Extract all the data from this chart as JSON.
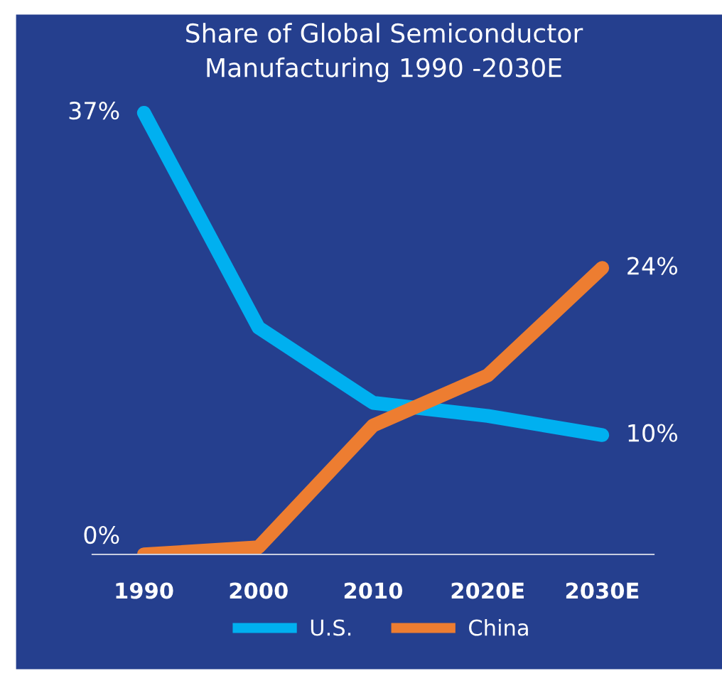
{
  "chart_data": {
    "type": "line",
    "title": "Share of Global Semiconductor\nManufacturing 1990 -2030E",
    "categories": [
      "1990",
      "2000",
      "2010",
      "2020E",
      "2030E"
    ],
    "series": [
      {
        "name": "U.S.",
        "color": "#00b0f0",
        "values": [
          37,
          19,
          12.7,
          11.6,
          10
        ],
        "value_labels": [
          "37%",
          null,
          null,
          null,
          "10%"
        ]
      },
      {
        "name": "China",
        "color": "#ed7d31",
        "values": [
          0,
          0.6,
          10.8,
          15,
          24
        ],
        "value_labels": [
          "0%",
          null,
          null,
          null,
          "24%"
        ]
      }
    ],
    "tick_labels": "x",
    "grid": false,
    "legend": "bottom",
    "marker": "none",
    "line_style": "solid"
  }
}
